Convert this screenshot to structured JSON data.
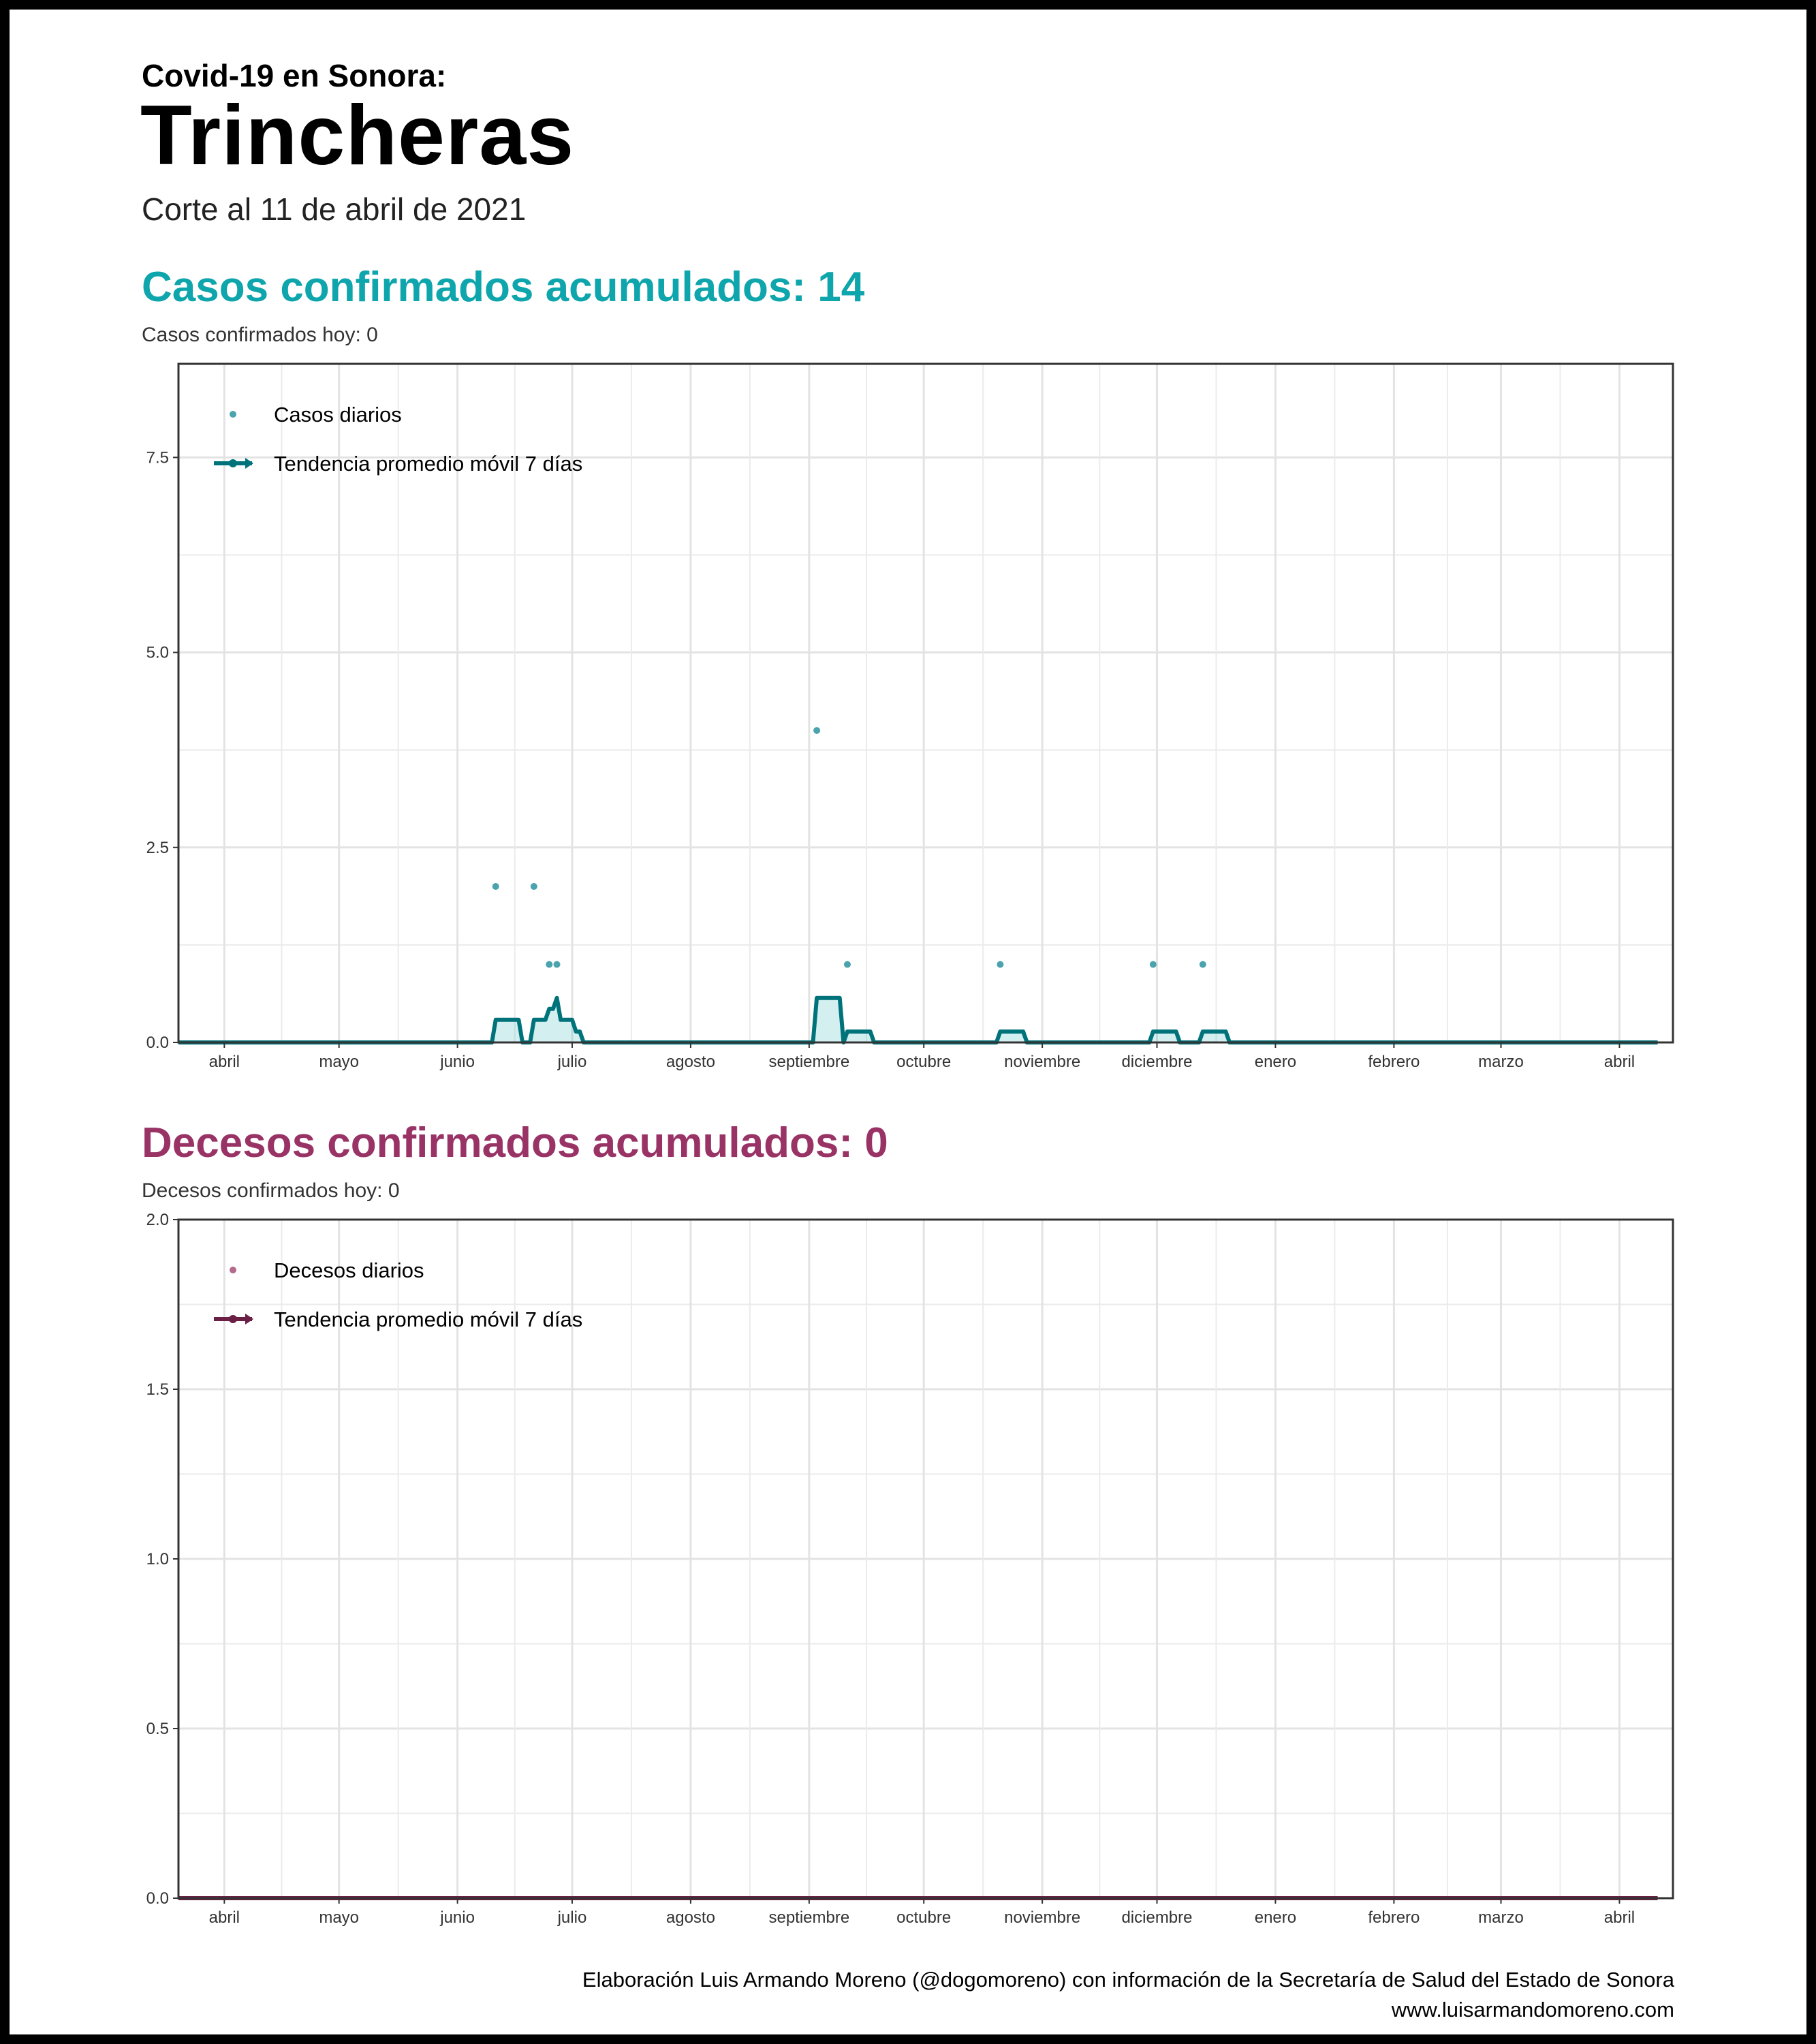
{
  "header": {
    "kicker": "Covid-19 en Sonora:",
    "title": "Trincheras",
    "subtitle": "Corte al 11 de abril de 2021"
  },
  "footer": {
    "credit": "Elaboración Luis Armando Moreno (@dogomoreno) con información de la Secretaría de Salud del Estado de Sonora",
    "site": "www.luisarmandomoreno.com"
  },
  "colors": {
    "cases": "#0ea5ac",
    "cases_line": "#00737a",
    "cases_points": "#4aa3ad",
    "deaths": "#993366",
    "deaths_line": "#6b1f44",
    "deaths_points": "#b46a8d"
  },
  "panels": {
    "cases": {
      "title": "Casos confirmados acumulados: 14",
      "subtitle": "Casos confirmados hoy: 0"
    },
    "deaths": {
      "title": "Decesos confirmados acumulados: 0",
      "subtitle": "Decesos confirmados hoy: 0"
    }
  },
  "chart_data": [
    {
      "type": "scatter",
      "name": "cases",
      "x_range": [
        "2020-03-20",
        "2021-04-15"
      ],
      "ylim": [
        0,
        8.7
      ],
      "y_ticks": [
        0,
        2.5,
        5,
        7.5
      ],
      "y_tick_labels": [
        "0.0",
        "2.5",
        "5.0",
        "7.5"
      ],
      "x_tick_dates": [
        "2020-04-01",
        "2020-05-01",
        "2020-06-01",
        "2020-07-01",
        "2020-08-01",
        "2020-09-01",
        "2020-10-01",
        "2020-11-01",
        "2020-12-01",
        "2021-01-01",
        "2021-02-01",
        "2021-03-01",
        "2021-04-01"
      ],
      "x_tick_labels": [
        "abril",
        "mayo",
        "junio",
        "julio",
        "agosto",
        "septiembre",
        "octubre",
        "noviembre",
        "diciembre",
        "enero",
        "febrero",
        "marzo",
        "abril"
      ],
      "grid": true,
      "legend_position": "top-left",
      "series": [
        {
          "name": "Casos diarios",
          "kind": "points",
          "points": [
            {
              "x": "2020-06-11",
              "y": 2
            },
            {
              "x": "2020-06-21",
              "y": 2
            },
            {
              "x": "2020-06-25",
              "y": 1
            },
            {
              "x": "2020-06-27",
              "y": 1
            },
            {
              "x": "2020-09-03",
              "y": 4
            },
            {
              "x": "2020-09-11",
              "y": 1
            },
            {
              "x": "2020-10-21",
              "y": 1
            },
            {
              "x": "2020-11-30",
              "y": 1
            },
            {
              "x": "2020-12-13",
              "y": 1
            }
          ]
        },
        {
          "name": "Tendencia promedio móvil 7 días",
          "kind": "line",
          "points": [
            {
              "x": "2020-03-20",
              "y": 0
            },
            {
              "x": "2020-06-10",
              "y": 0
            },
            {
              "x": "2020-06-11",
              "y": 0.29
            },
            {
              "x": "2020-06-17",
              "y": 0.29
            },
            {
              "x": "2020-06-18",
              "y": 0
            },
            {
              "x": "2020-06-20",
              "y": 0
            },
            {
              "x": "2020-06-21",
              "y": 0.29
            },
            {
              "x": "2020-06-24",
              "y": 0.29
            },
            {
              "x": "2020-06-25",
              "y": 0.43
            },
            {
              "x": "2020-06-26",
              "y": 0.43
            },
            {
              "x": "2020-06-27",
              "y": 0.57
            },
            {
              "x": "2020-06-28",
              "y": 0.29
            },
            {
              "x": "2020-07-01",
              "y": 0.29
            },
            {
              "x": "2020-07-02",
              "y": 0.14
            },
            {
              "x": "2020-07-03",
              "y": 0.14
            },
            {
              "x": "2020-07-04",
              "y": 0
            },
            {
              "x": "2020-09-02",
              "y": 0
            },
            {
              "x": "2020-09-03",
              "y": 0.57
            },
            {
              "x": "2020-09-09",
              "y": 0.57
            },
            {
              "x": "2020-09-10",
              "y": 0
            },
            {
              "x": "2020-09-11",
              "y": 0.14
            },
            {
              "x": "2020-09-17",
              "y": 0.14
            },
            {
              "x": "2020-09-18",
              "y": 0
            },
            {
              "x": "2020-10-20",
              "y": 0
            },
            {
              "x": "2020-10-21",
              "y": 0.14
            },
            {
              "x": "2020-10-27",
              "y": 0.14
            },
            {
              "x": "2020-10-28",
              "y": 0
            },
            {
              "x": "2020-11-29",
              "y": 0
            },
            {
              "x": "2020-11-30",
              "y": 0.14
            },
            {
              "x": "2020-12-06",
              "y": 0.14
            },
            {
              "x": "2020-12-07",
              "y": 0
            },
            {
              "x": "2020-12-12",
              "y": 0
            },
            {
              "x": "2020-12-13",
              "y": 0.14
            },
            {
              "x": "2020-12-19",
              "y": 0.14
            },
            {
              "x": "2020-12-20",
              "y": 0
            },
            {
              "x": "2021-04-11",
              "y": 0
            }
          ]
        }
      ]
    },
    {
      "type": "scatter",
      "name": "deaths",
      "x_range": [
        "2020-03-20",
        "2021-04-15"
      ],
      "ylim": [
        0,
        2
      ],
      "y_ticks": [
        0,
        0.5,
        1,
        1.5,
        2
      ],
      "y_tick_labels": [
        "0.0",
        "0.5",
        "1.0",
        "1.5",
        "2.0"
      ],
      "x_tick_dates": [
        "2020-04-01",
        "2020-05-01",
        "2020-06-01",
        "2020-07-01",
        "2020-08-01",
        "2020-09-01",
        "2020-10-01",
        "2020-11-01",
        "2020-12-01",
        "2021-01-01",
        "2021-02-01",
        "2021-03-01",
        "2021-04-01"
      ],
      "x_tick_labels": [
        "abril",
        "mayo",
        "junio",
        "julio",
        "agosto",
        "septiembre",
        "octubre",
        "noviembre",
        "diciembre",
        "enero",
        "febrero",
        "marzo",
        "abril"
      ],
      "grid": true,
      "legend_position": "top-left",
      "series": [
        {
          "name": "Decesos diarios",
          "kind": "points",
          "points": []
        },
        {
          "name": "Tendencia promedio móvil 7 días",
          "kind": "line",
          "points": [
            {
              "x": "2020-03-20",
              "y": 0
            },
            {
              "x": "2021-04-11",
              "y": 0
            }
          ]
        }
      ]
    }
  ]
}
